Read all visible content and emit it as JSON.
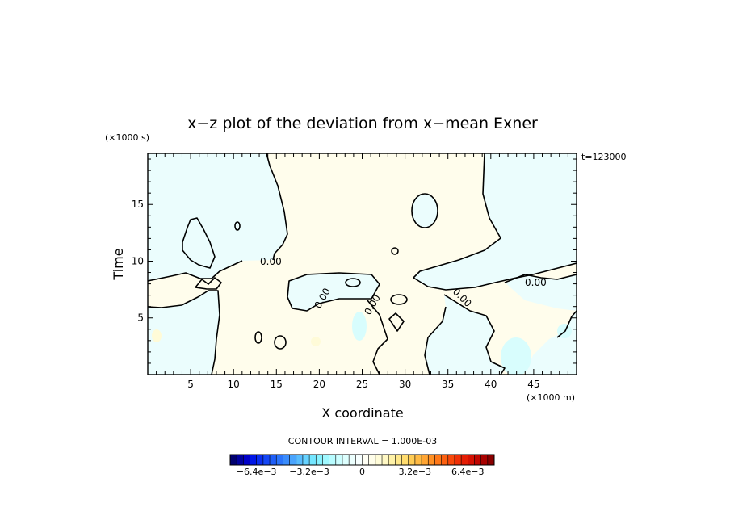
{
  "chart_data": {
    "type": "heatmap",
    "title": "x−z plot of the deviation from x−mean Exner",
    "xlabel": "X coordinate",
    "ylabel": "Time",
    "x_unit": "(×1000 m)",
    "y_unit": "(×1000 s)",
    "timestamp": "t=123000",
    "xlim": [
      0,
      50
    ],
    "ylim": [
      0,
      19.5
    ],
    "x_ticks": [
      5,
      10,
      15,
      20,
      25,
      30,
      35,
      40,
      45
    ],
    "y_ticks": [
      5,
      10,
      15
    ],
    "contour_label": "0.00",
    "contour_interval_text": "CONTOUR INTERVAL = 1.000E-03",
    "colorbar": {
      "labels": [
        "−6.4e−3",
        "−3.2e−3",
        "0",
        "3.2e−3",
        "6.4e−3"
      ],
      "label_values": [
        -0.0064,
        -0.0032,
        0,
        0.0032,
        0.0064
      ],
      "vmin": -0.008,
      "vmax": 0.008,
      "count": 40,
      "colors": [
        "#00006e",
        "#00009e",
        "#0000c8",
        "#0016e6",
        "#0a2ef0",
        "#1446f5",
        "#1e5ef8",
        "#2a74fb",
        "#3a8cfc",
        "#4aa4fd",
        "#58bcfe",
        "#66d2ff",
        "#74e6ff",
        "#88f2ff",
        "#a0f8ff",
        "#b8fcff",
        "#ccfeff",
        "#ddfffe",
        "#ecfffe",
        "#f7ffff",
        "#fffff5",
        "#fffeea",
        "#fffcd8",
        "#fff8c4",
        "#fff2a8",
        "#ffe88a",
        "#ffdc6e",
        "#ffcc55",
        "#ffba44",
        "#ffa533",
        "#ff9024",
        "#ff7818",
        "#fc6010",
        "#f8480a",
        "#f03006",
        "#e41e04",
        "#d41002",
        "#c00601",
        "#a80200",
        "#8a0000"
      ]
    },
    "regions": [
      {
        "sign": "negative",
        "approx_value": -0.0005,
        "description": "upper-left",
        "x_range": [
          0,
          14
        ],
        "y_range": [
          10,
          19.5
        ]
      },
      {
        "sign": "positive",
        "approx_value": 0.0004,
        "description": "central band",
        "x_range": [
          6,
          40
        ],
        "y_range": [
          0,
          19.5
        ]
      },
      {
        "sign": "negative",
        "approx_value": -0.0005,
        "description": "upper-right",
        "x_range": [
          32,
          50
        ],
        "y_range": [
          10,
          19.5
        ]
      },
      {
        "sign": "negative",
        "approx_value": -0.0006,
        "description": "lower-left",
        "x_range": [
          0,
          9
        ],
        "y_range": [
          0,
          8
        ]
      },
      {
        "sign": "negative",
        "approx_value": -0.0008,
        "description": "lower-right",
        "x_range": [
          32,
          50
        ],
        "y_range": [
          0,
          9
        ]
      },
      {
        "sign": "negative",
        "approx_value": -0.0015,
        "description": "minimum near x=43",
        "x_range": [
          41,
          45
        ],
        "y_range": [
          0,
          3
        ]
      }
    ]
  }
}
